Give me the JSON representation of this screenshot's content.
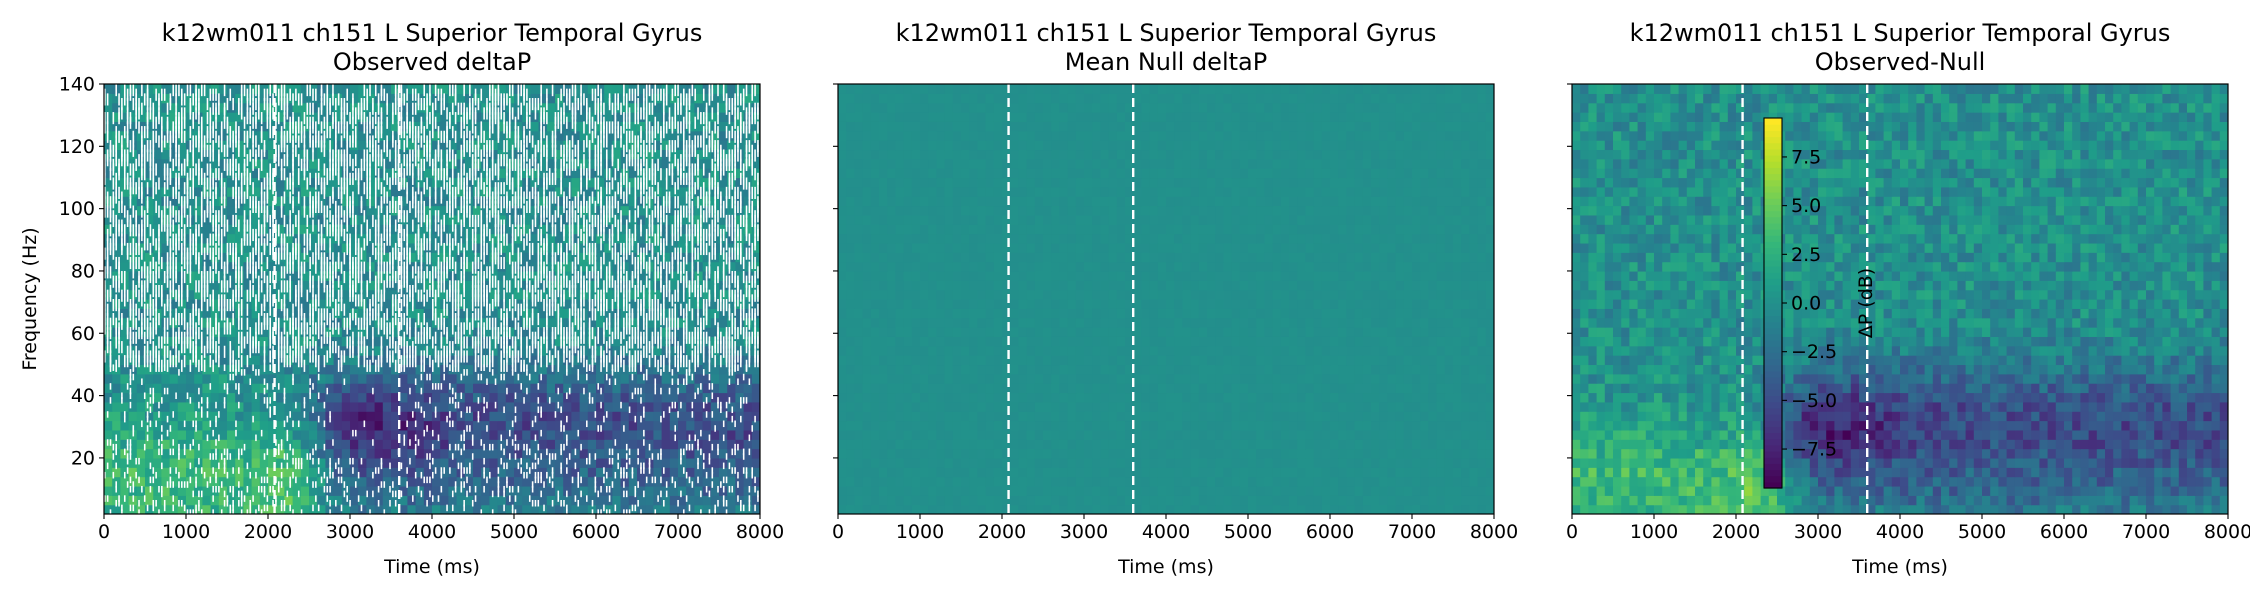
{
  "chart_data": [
    {
      "type": "heatmap",
      "title": "k12wm011 ch151 L Superior Temporal Gyrus",
      "subtitle": "Observed deltaP",
      "xlabel": "Time (ms)",
      "ylabel": "Frequency (Hz)",
      "xlim": [
        0,
        8000
      ],
      "ylim": [
        2,
        140
      ],
      "xticks": [
        "0",
        "1000",
        "2000",
        "3000",
        "4000",
        "5000",
        "6000",
        "7000",
        "8000"
      ],
      "yticks": [
        "20",
        "40",
        "60",
        "80",
        "100",
        "120",
        "140"
      ],
      "event_lines_ms": [
        2080,
        3600
      ],
      "mask": "white regions mark non-significant bins",
      "dominant_feature": "strong decrease (dark) at 20-45 Hz after ~2600 ms, positive (bright) at low frequencies before ~2600 ms"
    },
    {
      "type": "heatmap",
      "title": "k12wm011 ch151 L Superior Temporal Gyrus",
      "subtitle": "Mean Null deltaP",
      "xlabel": "Time (ms)",
      "ylabel": "",
      "xlim": [
        0,
        8000
      ],
      "ylim": [
        2,
        140
      ],
      "xticks": [
        "0",
        "1000",
        "2000",
        "3000",
        "4000",
        "5000",
        "6000",
        "7000",
        "8000"
      ],
      "event_lines_ms": [
        2080,
        3600
      ],
      "dominant_feature": "near-uniform values close to 0 dB"
    },
    {
      "type": "heatmap",
      "title": "k12wm011 ch151 L Superior Temporal Gyrus",
      "subtitle": "Observed-Null",
      "xlabel": "Time (ms)",
      "ylabel": "",
      "xlim": [
        0,
        8000
      ],
      "ylim": [
        2,
        140
      ],
      "xticks": [
        "0",
        "1000",
        "2000",
        "3000",
        "4000",
        "5000",
        "6000",
        "7000",
        "8000"
      ],
      "event_lines_ms": [
        2080,
        3600
      ],
      "colorbar": {
        "label": "ΔP (dB)",
        "range": [
          -9.5,
          9.5
        ],
        "ticks": [
          "−7.5",
          "−5.0",
          "−2.5",
          "0.0",
          "2.5",
          "5.0",
          "7.5"
        ],
        "colormap": "viridis"
      },
      "dominant_feature": "decrease at 20-45 Hz after ~2600 ms"
    }
  ]
}
